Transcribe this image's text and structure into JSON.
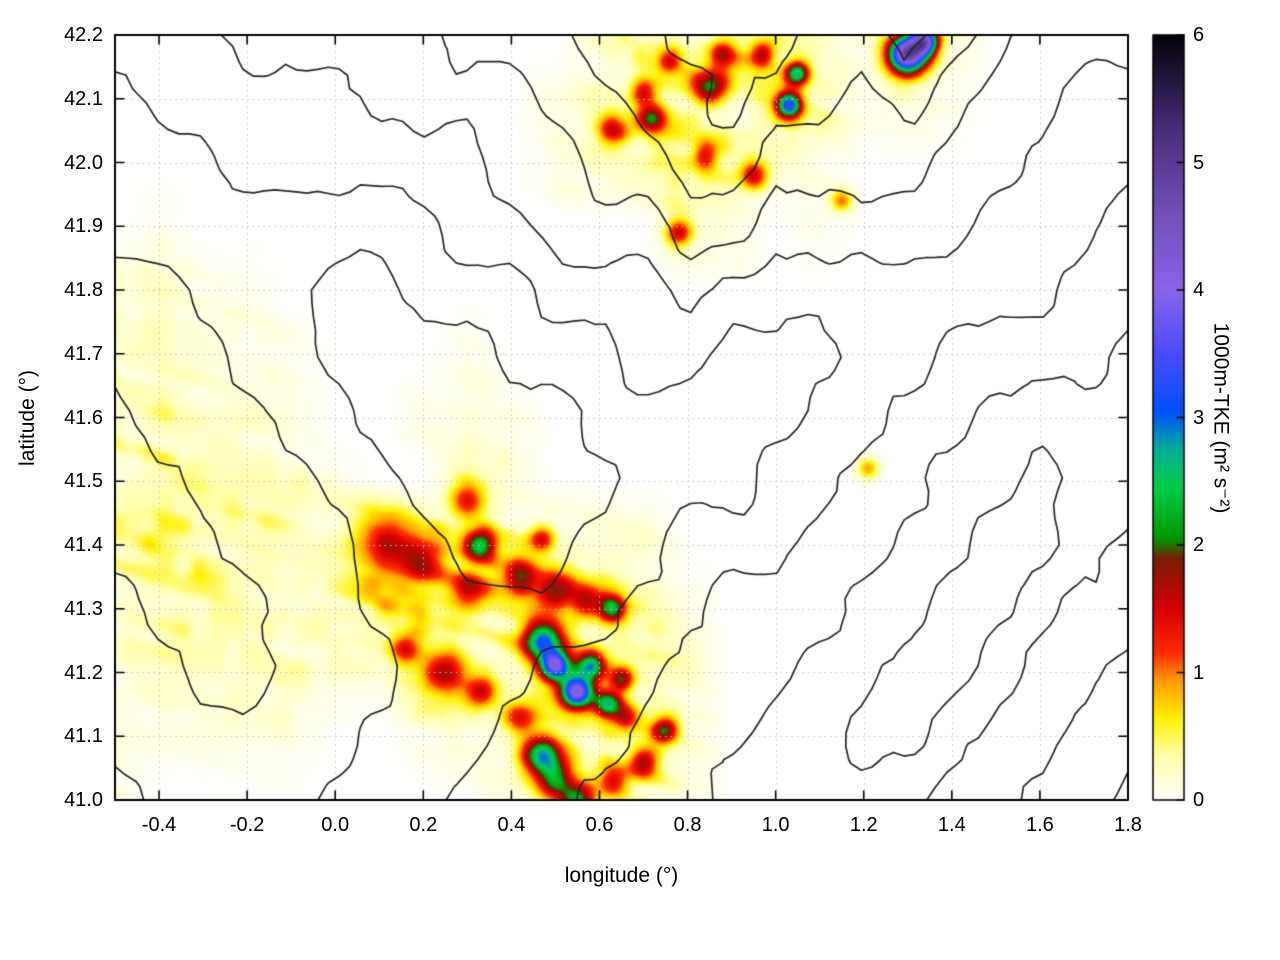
{
  "figure": {
    "background": "#ffffff"
  },
  "chart_data": {
    "type": "heatmap",
    "title": "",
    "xlabel": "longitude (°)",
    "ylabel": "latitude (°)",
    "xlim": [
      -0.5,
      1.8
    ],
    "ylim": [
      41.0,
      42.2
    ],
    "xticks": [
      "-0.4",
      "-0.2",
      "0.0",
      "0.2",
      "0.4",
      "0.6",
      "0.8",
      "1.0",
      "1.2",
      "1.4",
      "1.6",
      "1.8"
    ],
    "xtick_values": [
      -0.4,
      -0.2,
      0.0,
      0.2,
      0.4,
      0.6,
      0.8,
      1.0,
      1.2,
      1.4,
      1.6,
      1.8
    ],
    "yticks": [
      "41.0",
      "41.1",
      "41.2",
      "41.3",
      "41.4",
      "41.5",
      "41.6",
      "41.7",
      "41.8",
      "41.9",
      "42.0",
      "42.1",
      "42.2"
    ],
    "ytick_values": [
      41.0,
      41.1,
      41.2,
      41.3,
      41.4,
      41.5,
      41.6,
      41.7,
      41.8,
      41.9,
      42.0,
      42.1,
      42.2
    ],
    "grid": true,
    "colorbar": {
      "label": "1000m-TKE (m² s⁻²)",
      "min": 0,
      "max": 6,
      "ticks": [
        "0",
        "1",
        "2",
        "3",
        "4",
        "5",
        "6"
      ],
      "tick_values": [
        0,
        1,
        2,
        3,
        4,
        5,
        6
      ],
      "colormap_rgb_stops": [
        [
          0.0,
          255,
          255,
          255
        ],
        [
          0.35,
          255,
          255,
          170
        ],
        [
          0.65,
          255,
          240,
          0
        ],
        [
          0.95,
          255,
          150,
          0
        ],
        [
          1.15,
          255,
          45,
          0
        ],
        [
          1.5,
          215,
          0,
          0
        ],
        [
          1.9,
          120,
          30,
          0
        ],
        [
          2.05,
          0,
          150,
          0
        ],
        [
          2.45,
          0,
          205,
          70
        ],
        [
          2.75,
          0,
          175,
          150
        ],
        [
          3.05,
          0,
          80,
          255
        ],
        [
          3.5,
          75,
          75,
          255
        ],
        [
          4.0,
          135,
          100,
          235
        ],
        [
          4.6,
          115,
          80,
          185
        ],
        [
          5.2,
          75,
          50,
          130
        ],
        [
          6.0,
          5,
          2,
          10
        ]
      ]
    },
    "tke_field": {
      "grid_lon_span": [
        -0.5,
        1.8
      ],
      "grid_lat_span_top_to_bottom": [
        42.2,
        41.0
      ],
      "base_scale": 0.1,
      "base_grid_digit_rows": [
        "000000000002324321420000",
        "000000000012433431210000",
        "000000000012343210000000",
        "010000000000032010000000",
        "221100000000000000000000",
        "222110001000000000000000",
        "232210011100000000000000",
        "332221003100000000000000",
        "344333445433200000000000",
        "233323543444310000000000",
        "122222143245320000000000",
        "111110012343420000000000",
        "100000000242310000000000"
      ],
      "hotspots_lon_lat_sigma_tke": [
        [
          0.3,
          41.47,
          0.02,
          1.2
        ],
        [
          0.12,
          41.4,
          0.035,
          1.3
        ],
        [
          0.2,
          41.37,
          0.025,
          1.1
        ],
        [
          0.33,
          41.4,
          0.016,
          1.9
        ],
        [
          0.3,
          41.33,
          0.022,
          1.2
        ],
        [
          0.42,
          41.35,
          0.02,
          1.3
        ],
        [
          0.47,
          41.41,
          0.014,
          1.2
        ],
        [
          0.5,
          41.33,
          0.02,
          1.4
        ],
        [
          0.57,
          41.31,
          0.018,
          1.3
        ],
        [
          0.63,
          41.3,
          0.015,
          2.1
        ],
        [
          0.47,
          41.25,
          0.022,
          2.7
        ],
        [
          0.5,
          41.21,
          0.016,
          3.4
        ],
        [
          0.55,
          41.17,
          0.018,
          3.6
        ],
        [
          0.58,
          41.21,
          0.015,
          2.4
        ],
        [
          0.62,
          41.15,
          0.015,
          2.2
        ],
        [
          0.65,
          41.19,
          0.013,
          1.6
        ],
        [
          0.25,
          41.2,
          0.024,
          1.3
        ],
        [
          0.16,
          41.24,
          0.018,
          1.1
        ],
        [
          0.33,
          41.17,
          0.017,
          1.2
        ],
        [
          0.42,
          41.13,
          0.017,
          1.2
        ],
        [
          0.47,
          41.07,
          0.021,
          2.5
        ],
        [
          0.5,
          41.03,
          0.021,
          1.6
        ],
        [
          0.55,
          41.0,
          0.018,
          1.7
        ],
        [
          0.63,
          41.03,
          0.017,
          1.3
        ],
        [
          0.7,
          41.06,
          0.015,
          1.5
        ],
        [
          0.75,
          41.11,
          0.014,
          1.6
        ],
        [
          0.66,
          41.13,
          0.013,
          1.2
        ],
        [
          1.21,
          41.52,
          0.012,
          0.9
        ],
        [
          0.63,
          42.05,
          0.017,
          1.3
        ],
        [
          0.72,
          42.07,
          0.015,
          1.6
        ],
        [
          0.7,
          42.11,
          0.014,
          1.2
        ],
        [
          0.76,
          42.16,
          0.014,
          1.1
        ],
        [
          0.85,
          42.12,
          0.019,
          1.7
        ],
        [
          0.88,
          42.17,
          0.015,
          1.3
        ],
        [
          0.97,
          42.17,
          0.014,
          1.4
        ],
        [
          1.03,
          42.09,
          0.014,
          2.9
        ],
        [
          1.05,
          42.14,
          0.013,
          2.3
        ],
        [
          0.95,
          41.98,
          0.015,
          1.3
        ],
        [
          0.84,
          42.01,
          0.014,
          1.1
        ],
        [
          0.78,
          41.89,
          0.015,
          1.4
        ],
        [
          1.3,
          42.17,
          0.021,
          4.6
        ],
        [
          1.34,
          42.19,
          0.014,
          3.4
        ],
        [
          1.15,
          41.94,
          0.012,
          1.0
        ]
      ]
    },
    "terrain_contours": {
      "levels": [
        1.5,
        2.5,
        3.5,
        4.5,
        5.5,
        6.5
      ],
      "elevation_grid_digit_rows": [
        "333444445556677766765444",
        "233333444455667665654433",
        "222333333445566555544333",
        "222222223344455444443334",
        "332221122233343333333344",
        "333221111222332223344445",
        "433322111112222233445555",
        "443332211111222334455655",
        "444333221112233344556654",
        "344433222222334445566544",
        "334433322233344455665443",
        "333333222333444556654433",
        "233332223334445555544332"
      ]
    }
  }
}
